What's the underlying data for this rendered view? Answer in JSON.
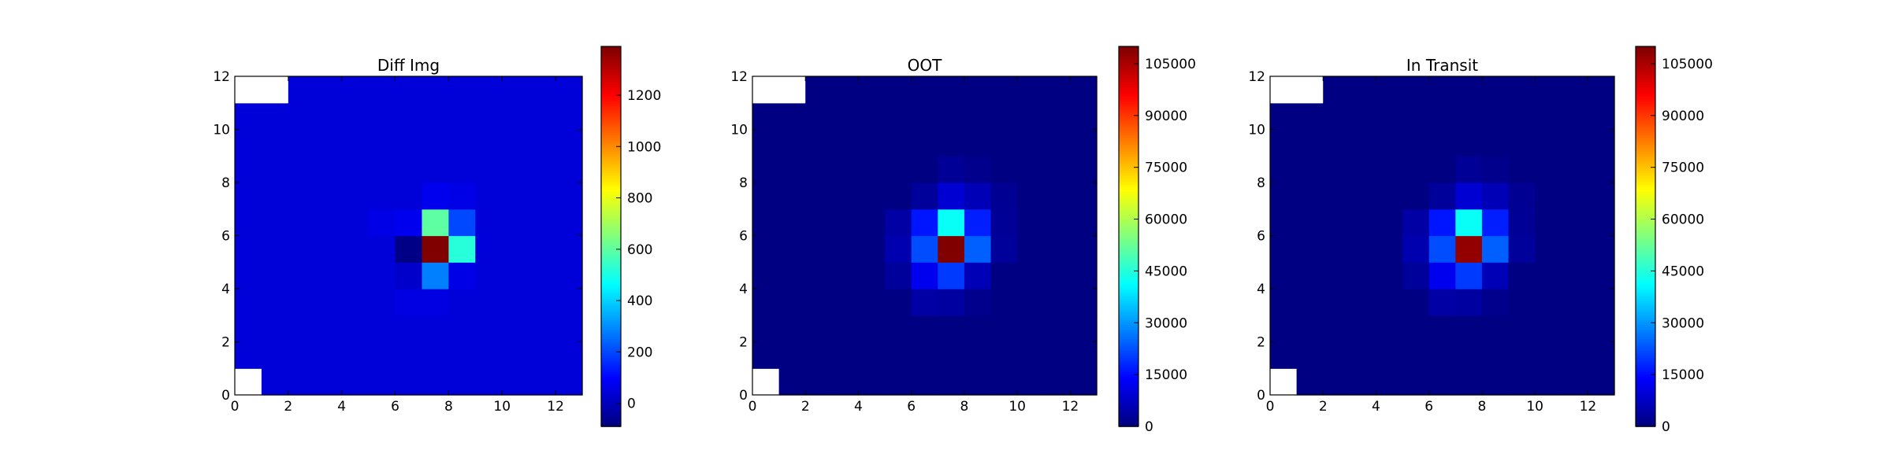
{
  "chart_data": [
    {
      "type": "heatmap",
      "title": "Diff Img",
      "xlim": [
        0,
        13
      ],
      "ylim": [
        0,
        12
      ],
      "xticks": [
        0,
        2,
        4,
        6,
        8,
        10,
        12
      ],
      "yticks": [
        0,
        2,
        4,
        6,
        8,
        10,
        12
      ],
      "colormap": "jet",
      "colorbar": {
        "min": -90,
        "max": 1390,
        "ticks": [
          0,
          200,
          400,
          600,
          800,
          1000,
          1200
        ]
      },
      "masked_cells": [
        [
          0,
          11
        ],
        [
          1,
          11
        ],
        [
          0,
          0
        ]
      ],
      "background": 40,
      "cells": [
        [
          5,
          6,
          60
        ],
        [
          6,
          6,
          70
        ],
        [
          7,
          6,
          600
        ],
        [
          8,
          6,
          200
        ],
        [
          6,
          5,
          -80
        ],
        [
          7,
          5,
          1390
        ],
        [
          8,
          5,
          520
        ],
        [
          6,
          4,
          20
        ],
        [
          7,
          4,
          280
        ],
        [
          8,
          4,
          60
        ],
        [
          7,
          7,
          70
        ],
        [
          8,
          7,
          60
        ],
        [
          6,
          3,
          55
        ],
        [
          7,
          3,
          55
        ]
      ]
    },
    {
      "type": "heatmap",
      "title": "OOT",
      "xlim": [
        0,
        13
      ],
      "ylim": [
        0,
        12
      ],
      "xticks": [
        0,
        2,
        4,
        6,
        8,
        10,
        12
      ],
      "yticks": [
        0,
        2,
        4,
        6,
        8,
        10,
        12
      ],
      "colormap": "jet",
      "colorbar": {
        "min": 0,
        "max": 110000,
        "ticks": [
          0,
          15000,
          30000,
          45000,
          60000,
          75000,
          90000,
          105000
        ]
      },
      "masked_cells": [
        [
          0,
          11
        ],
        [
          1,
          11
        ],
        [
          0,
          0
        ]
      ],
      "background": 400,
      "cells": [
        [
          7,
          8,
          2500
        ],
        [
          8,
          8,
          1500
        ],
        [
          6,
          7,
          3000
        ],
        [
          7,
          7,
          9000
        ],
        [
          8,
          7,
          6000
        ],
        [
          9,
          7,
          2000
        ],
        [
          5,
          6,
          4000
        ],
        [
          6,
          6,
          16000
        ],
        [
          7,
          6,
          42000
        ],
        [
          8,
          6,
          17000
        ],
        [
          9,
          6,
          2500
        ],
        [
          5,
          5,
          5000
        ],
        [
          6,
          5,
          22000
        ],
        [
          7,
          5,
          110000
        ],
        [
          8,
          5,
          24000
        ],
        [
          9,
          5,
          3000
        ],
        [
          5,
          4,
          3000
        ],
        [
          6,
          4,
          12000
        ],
        [
          7,
          4,
          20000
        ],
        [
          8,
          4,
          6000
        ],
        [
          6,
          3,
          4000
        ],
        [
          7,
          3,
          3500
        ],
        [
          8,
          3,
          1500
        ]
      ]
    },
    {
      "type": "heatmap",
      "title": "In Transit",
      "xlim": [
        0,
        13
      ],
      "ylim": [
        0,
        12
      ],
      "xticks": [
        0,
        2,
        4,
        6,
        8,
        10,
        12
      ],
      "yticks": [
        0,
        2,
        4,
        6,
        8,
        10,
        12
      ],
      "colormap": "jet",
      "colorbar": {
        "min": 0,
        "max": 110000,
        "ticks": [
          0,
          15000,
          30000,
          45000,
          60000,
          75000,
          90000,
          105000
        ]
      },
      "masked_cells": [
        [
          0,
          11
        ],
        [
          1,
          11
        ],
        [
          0,
          0
        ]
      ],
      "background": 400,
      "cells": [
        [
          7,
          8,
          2500
        ],
        [
          8,
          8,
          1500
        ],
        [
          6,
          7,
          3000
        ],
        [
          7,
          7,
          9000
        ],
        [
          8,
          7,
          6000
        ],
        [
          9,
          7,
          2000
        ],
        [
          5,
          6,
          4000
        ],
        [
          6,
          6,
          16000
        ],
        [
          7,
          6,
          42000
        ],
        [
          8,
          6,
          17000
        ],
        [
          9,
          6,
          2500
        ],
        [
          5,
          5,
          5000
        ],
        [
          6,
          5,
          22000
        ],
        [
          7,
          5,
          108000
        ],
        [
          8,
          5,
          24000
        ],
        [
          9,
          5,
          3000
        ],
        [
          5,
          4,
          3000
        ],
        [
          6,
          4,
          12000
        ],
        [
          7,
          4,
          20000
        ],
        [
          8,
          4,
          6000
        ],
        [
          6,
          3,
          4000
        ],
        [
          7,
          3,
          3500
        ],
        [
          8,
          3,
          1500
        ]
      ]
    }
  ]
}
